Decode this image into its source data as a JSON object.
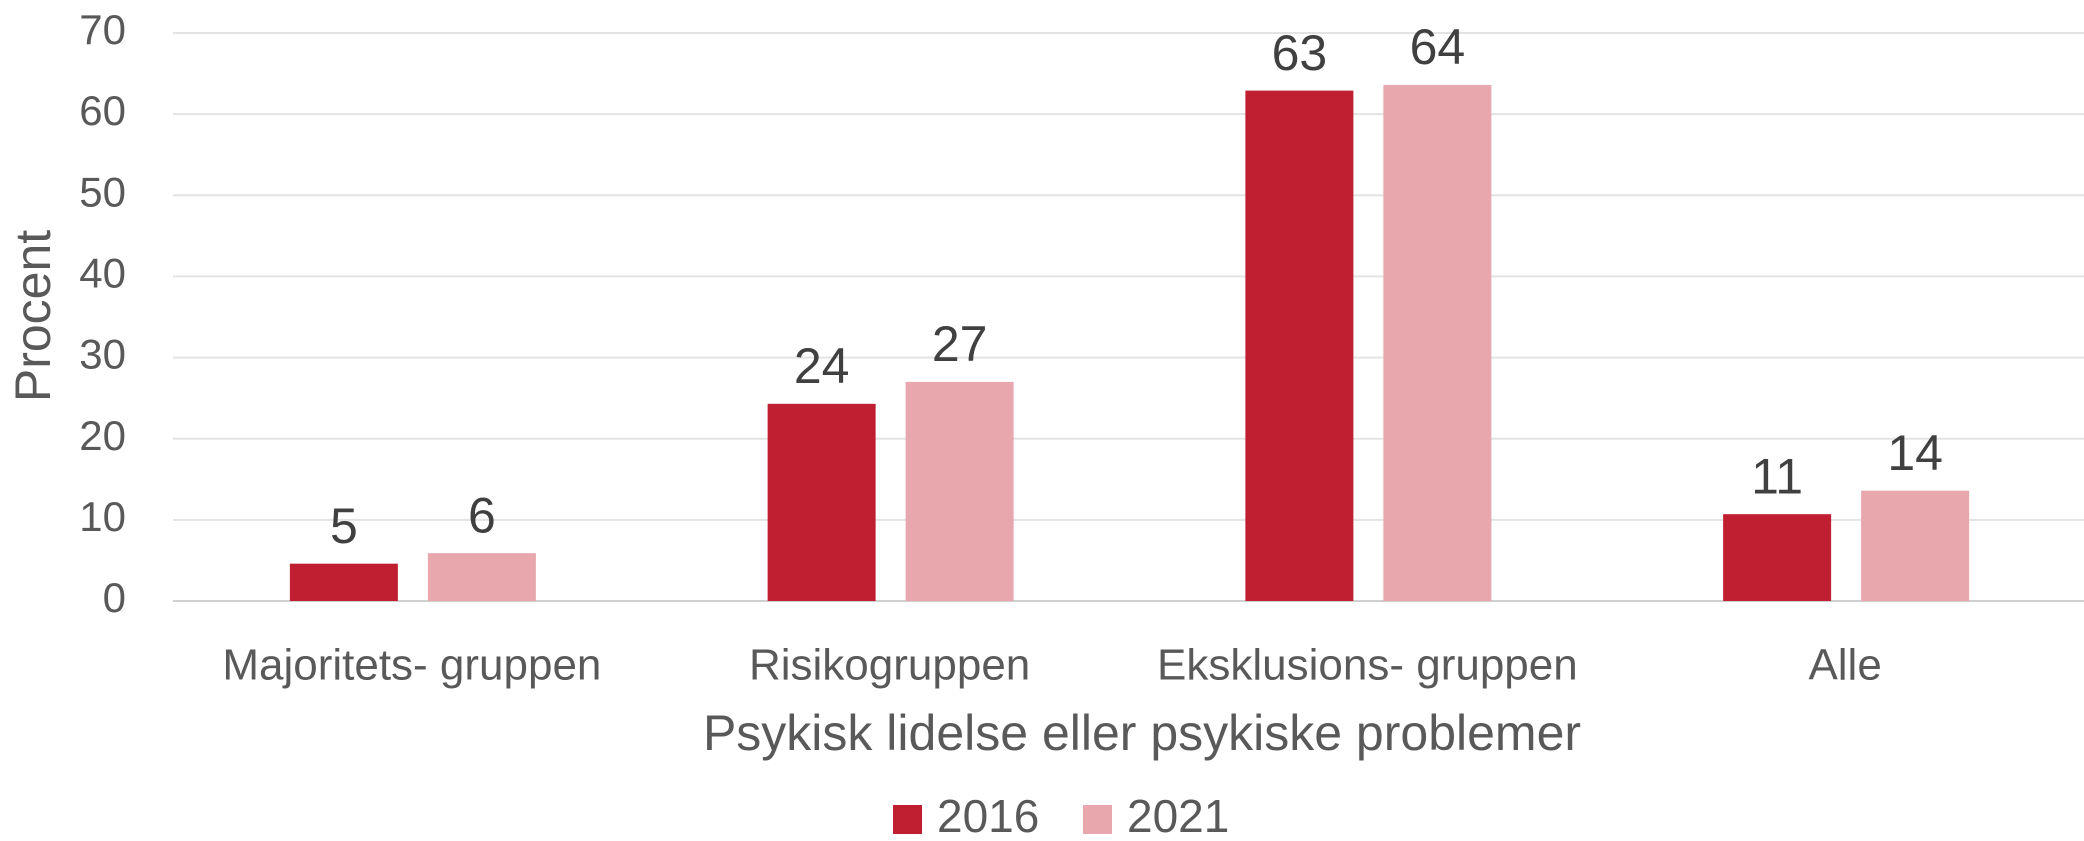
{
  "chart_data": {
    "type": "bar",
    "x_label": "Psykisk lidelse eller psykiske problemer",
    "y_label": "Procent",
    "categories": [
      "Majoritets- gruppen",
      "Risikogruppen",
      "Eksklusions- gruppen",
      "Alle"
    ],
    "series": [
      {
        "name": "2016",
        "color": "#c01e31",
        "values": [
          4.6,
          24.3,
          62.9,
          10.7
        ],
        "value_labels": [
          "5",
          "24",
          "63",
          "11"
        ]
      },
      {
        "name": "2021",
        "color": "#e8a7ac",
        "values": [
          5.9,
          27.0,
          63.6,
          13.6
        ],
        "value_labels": [
          "6",
          "27",
          "64",
          "14"
        ]
      }
    ],
    "ylim": [
      0,
      70
    ],
    "yticks": [
      0,
      10,
      20,
      30,
      40,
      50,
      60,
      70
    ],
    "grid": true,
    "legend": "bottom"
  }
}
